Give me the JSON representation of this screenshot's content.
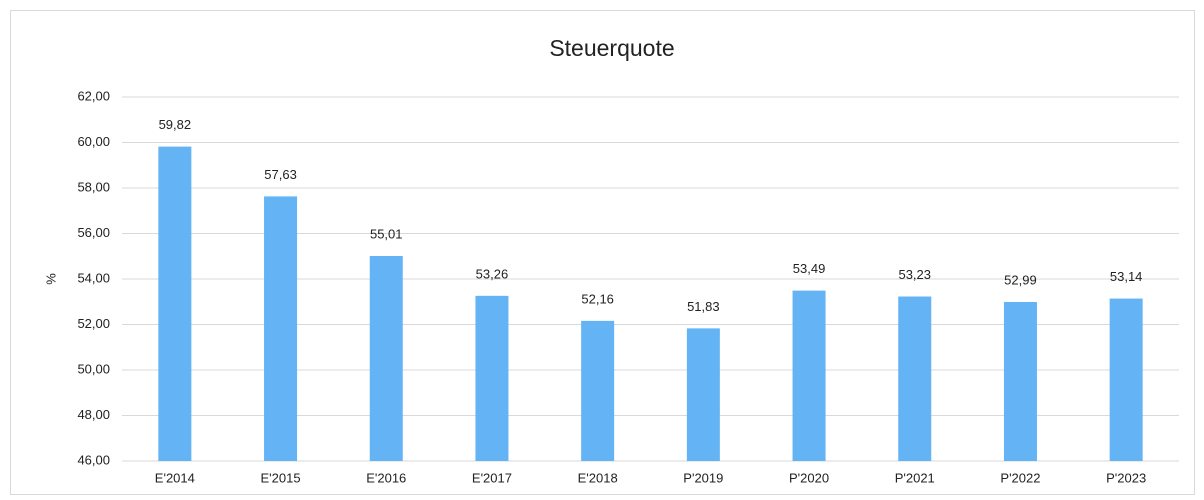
{
  "chart_data": {
    "type": "bar",
    "title": "Steuerquote",
    "y_label": "%",
    "categories": [
      "E'2014",
      "E'2015",
      "E'2016",
      "E'2017",
      "E'2018",
      "P'2019",
      "P'2020",
      "P'2021",
      "P'2022",
      "P'2023"
    ],
    "values": [
      59.82,
      57.63,
      55.01,
      53.26,
      52.16,
      51.83,
      53.49,
      53.23,
      52.99,
      53.14
    ],
    "value_labels": [
      "59,82",
      "57,63",
      "55,01",
      "53,26",
      "52,16",
      "51,83",
      "53,49",
      "53,23",
      "52,99",
      "53,14"
    ],
    "color": "#63b3f5",
    "ylim": [
      46,
      62
    ],
    "yticks": [
      {
        "value": 46,
        "label": "46,00"
      },
      {
        "value": 48,
        "label": "48,00"
      },
      {
        "value": 50,
        "label": "50,00"
      },
      {
        "value": 52,
        "label": "52,00"
      },
      {
        "value": 54,
        "label": "54,00"
      },
      {
        "value": 56,
        "label": "56,00"
      },
      {
        "value": 58,
        "label": "58,00"
      },
      {
        "value": 60,
        "label": "60,00"
      },
      {
        "value": 62,
        "label": "62,00"
      }
    ],
    "grid": true
  }
}
